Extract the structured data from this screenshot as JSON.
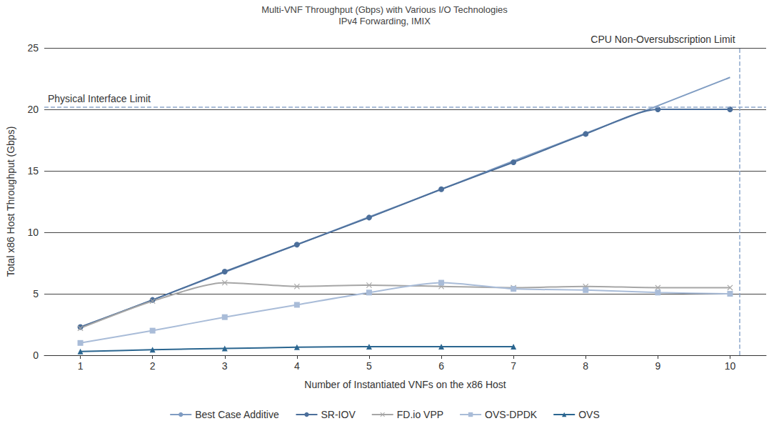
{
  "chart_data": {
    "type": "line",
    "title": "Multi-VNF Throughput (Gbps) with Various I/O Technologies",
    "subtitle": "IPv4 Forwarding, IMIX",
    "x_label": "Number of Instantiated VNFs on the x86 Host",
    "y_label": "Total x86 Host Throughput (Gbps)",
    "x": [
      1,
      2,
      3,
      4,
      5,
      6,
      7,
      8,
      9,
      10
    ],
    "xlim": [
      0.5,
      10.5
    ],
    "xticks": [
      1,
      2,
      3,
      4,
      5,
      6,
      7,
      8,
      9,
      10
    ],
    "ylim": [
      0,
      25
    ],
    "yticks": [
      0,
      5,
      10,
      15,
      20,
      25
    ],
    "grid": true,
    "legend": "bottom",
    "series": [
      {
        "name": "Best Case Additive",
        "color": "#7f9cc2",
        "marker": "none",
        "values": [
          2.25,
          4.5,
          6.75,
          9.0,
          11.25,
          13.5,
          15.8,
          18.05,
          20.3,
          22.6
        ]
      },
      {
        "name": "SR-IOV",
        "color": "#4c6f9b",
        "marker": "circle",
        "values": [
          2.3,
          4.5,
          6.8,
          9.0,
          11.2,
          13.5,
          15.7,
          18.0,
          20.0,
          20.0
        ]
      },
      {
        "name": "FD.io VPP",
        "color": "#a6a6a6",
        "marker": "x",
        "values": [
          2.2,
          4.4,
          5.9,
          5.6,
          5.7,
          5.6,
          5.5,
          5.6,
          5.5,
          5.5
        ]
      },
      {
        "name": "OVS-DPDK",
        "color": "#a9bcd8",
        "marker": "square",
        "values": [
          1.0,
          2.0,
          3.1,
          4.1,
          5.1,
          5.9,
          5.4,
          5.3,
          5.1,
          5.0
        ]
      },
      {
        "name": "OVS",
        "color": "#2b6690",
        "marker": "triangle",
        "values": [
          0.3,
          0.45,
          0.55,
          0.65,
          0.7,
          0.7,
          0.7,
          null,
          null,
          null
        ]
      }
    ],
    "annotations": [
      {
        "text": "Physical Interface Limit",
        "axis": "y",
        "value": 20.2,
        "line_style": "dashed"
      },
      {
        "text": "CPU Non-Oversubscription Limit",
        "axis": "x",
        "value": 10.13,
        "line_style": "dashed"
      }
    ]
  }
}
